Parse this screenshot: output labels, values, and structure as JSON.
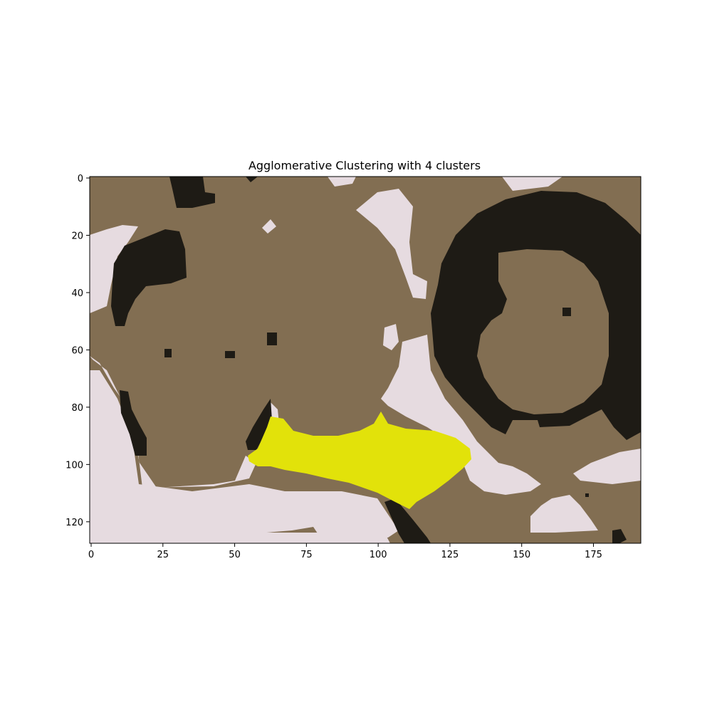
{
  "chart_data": {
    "type": "heatmap",
    "title": "Agglomerative Clustering with 4 clusters",
    "xlabel": "",
    "ylabel": "",
    "xlim": [
      -0.5,
      191.5
    ],
    "ylim": [
      127.5,
      -0.5
    ],
    "grid": false,
    "xticks": [
      0,
      25,
      50,
      75,
      100,
      125,
      150,
      175
    ],
    "yticks": [
      0,
      20,
      40,
      60,
      80,
      100,
      120
    ],
    "n_clusters": 4,
    "cluster_colors": [
      "#826e52",
      "#1e1b15",
      "#e6dbe0",
      "#e2e20a"
    ],
    "image_size": {
      "rows": 128,
      "cols": 192
    }
  }
}
